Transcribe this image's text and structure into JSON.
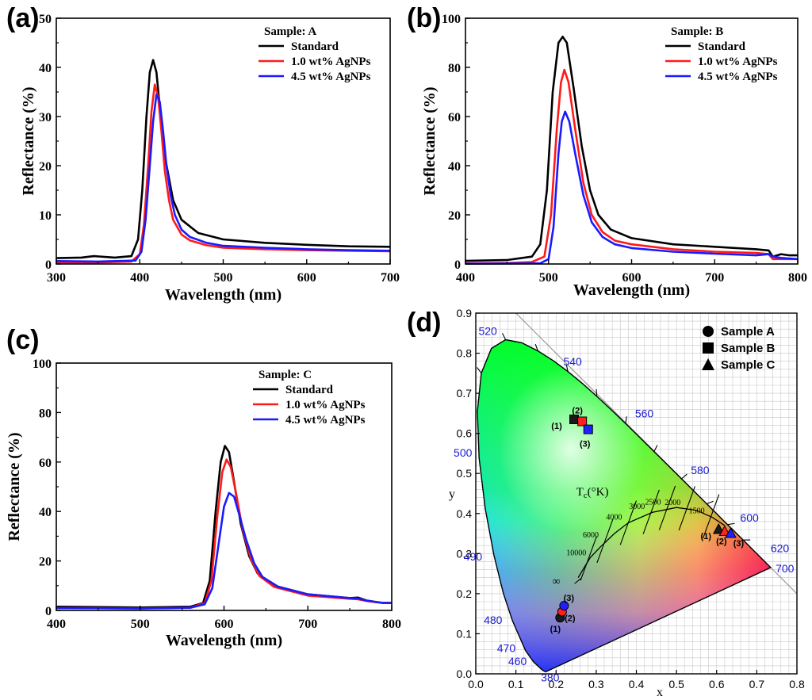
{
  "charts": [
    {
      "panel_label": "(a)",
      "chart_data": {
        "type": "line",
        "title": "",
        "xlabel": "Wavelength (nm)",
        "ylabel": "Reflectance (%)",
        "xlim": [
          300,
          700
        ],
        "ylim": [
          0,
          50
        ],
        "xticks": [
          300,
          400,
          500,
          600,
          700
        ],
        "yticks": [
          0,
          10,
          20,
          30,
          40,
          50
        ],
        "legend_title": "Sample: A",
        "series": [
          {
            "name": "Standard",
            "color": "#000000",
            "x": [
              300,
              330,
              345,
              370,
              390,
              398,
              403,
              408,
              412,
              416,
              420,
              425,
              430,
              440,
              450,
              470,
              500,
              550,
              600,
              650,
              700
            ],
            "y": [
              1.2,
              1.3,
              1.6,
              1.3,
              1.6,
              5,
              15,
              30,
              39,
              41.5,
              39,
              30,
              22,
              13,
              9,
              6.3,
              5,
              4.3,
              3.9,
              3.6,
              3.5
            ]
          },
          {
            "name": "1.0 wt% AgNPs",
            "color": "#ff1a1a",
            "x": [
              300,
              350,
              390,
              400,
              405,
              410,
              414,
              418,
              422,
              426,
              430,
              435,
              440,
              450,
              460,
              480,
              500,
              550,
              600,
              650,
              700
            ],
            "y": [
              0.3,
              0.3,
              0.5,
              2,
              8,
              20,
              31,
              36.5,
              34,
              27,
              19,
              13,
              9,
              6,
              4.8,
              3.8,
              3.3,
              3,
              2.8,
              2.7,
              2.6
            ]
          },
          {
            "name": "4.5 wt% AgNPs",
            "color": "#1a1aff",
            "x": [
              300,
              350,
              395,
              402,
              407,
              412,
              416,
              420,
              424,
              428,
              432,
              437,
              442,
              450,
              460,
              480,
              500,
              550,
              600,
              650,
              700
            ],
            "y": [
              0.6,
              0.5,
              0.7,
              2.5,
              9,
              20,
              29,
              34.5,
              33,
              27,
              20,
              14,
              10,
              7,
              5.5,
              4.3,
              3.7,
              3.3,
              3,
              2.8,
              2.7
            ]
          }
        ]
      }
    },
    {
      "panel_label": "(b)",
      "chart_data": {
        "type": "line",
        "title": "",
        "xlabel": "Wavelength (nm)",
        "ylabel": "Reflectance (%)",
        "xlim": [
          400,
          800
        ],
        "ylim": [
          0,
          100
        ],
        "xticks": [
          400,
          500,
          600,
          700,
          800
        ],
        "yticks": [
          0,
          20,
          40,
          60,
          80,
          100
        ],
        "legend_title": "Sample: B",
        "series": [
          {
            "name": "Standard",
            "color": "#000000",
            "x": [
              400,
              450,
              480,
              490,
              498,
              505,
              512,
              517,
              522,
              530,
              540,
              550,
              560,
              575,
              600,
              650,
              700,
              750,
              765,
              770,
              780,
              790,
              800
            ],
            "y": [
              1.3,
              1.6,
              3,
              8,
              30,
              70,
              90,
              92.5,
              90,
              72,
              48,
              30,
              20,
              14,
              10.5,
              8,
              7,
              6,
              5.5,
              3,
              4,
              3.5,
              3.5
            ]
          },
          {
            "name": "1.0 wt% AgNPs",
            "color": "#ff1a1a",
            "x": [
              400,
              450,
              480,
              495,
              503,
              510,
              515,
              519,
              524,
              532,
              542,
              552,
              565,
              580,
              600,
              650,
              700,
              750,
              765,
              770,
              780,
              800
            ],
            "y": [
              0.3,
              0.4,
              0.8,
              3,
              20,
              55,
              74,
              79,
              74,
              55,
              33,
              20,
              13,
              9.5,
              8,
              6,
              5,
              4.5,
              4,
              2,
              2,
              2
            ]
          },
          {
            "name": "4.5 wt% AgNPs",
            "color": "#1a1aff",
            "x": [
              400,
              450,
              490,
              500,
              506,
              512,
              516,
              520,
              525,
              532,
              542,
              552,
              565,
              580,
              600,
              650,
              700,
              750,
              765,
              770,
              780,
              800
            ],
            "y": [
              0.1,
              0.2,
              0.3,
              2,
              15,
              45,
              58,
              62,
              58,
              45,
              28,
              17,
              11,
              8,
              6.5,
              5,
              4.2,
              3.5,
              4,
              3,
              2.5,
              2
            ]
          }
        ]
      }
    },
    {
      "panel_label": "(c)",
      "chart_data": {
        "type": "line",
        "title": "",
        "xlabel": "Wavelength (nm)",
        "ylabel": "Reflectance (%)",
        "xlim": [
          400,
          800
        ],
        "ylim": [
          0,
          100
        ],
        "xticks": [
          400,
          500,
          600,
          700,
          800
        ],
        "yticks": [
          0,
          20,
          40,
          60,
          80,
          100
        ],
        "legend_title": "Sample: C",
        "series": [
          {
            "name": "Standard",
            "color": "#000000",
            "x": [
              400,
              500,
              560,
              575,
              583,
              590,
              596,
              601,
              606,
              612,
              620,
              630,
              640,
              660,
              700,
              750,
              760,
              770,
              780,
              790,
              800
            ],
            "y": [
              1.5,
              1.2,
              1.5,
              3,
              12,
              40,
              60,
              66.5,
              64,
              52,
              35,
              22,
              15,
              10,
              6.5,
              5,
              5.2,
              4,
              3.5,
              3,
              3
            ]
          },
          {
            "name": "1.0 wt% AgNPs",
            "color": "#ff1a1a",
            "x": [
              400,
              500,
              560,
              577,
              585,
              592,
              598,
              603,
              608,
              614,
              622,
              632,
              642,
              660,
              700,
              750,
              760,
              770,
              780,
              790,
              800
            ],
            "y": [
              1,
              0.8,
              1.1,
              3,
              12,
              38,
              56,
              61,
              58,
              48,
              33,
              21,
              14,
              9.5,
              6,
              4.7,
              4.5,
              3.8,
              3.4,
              3,
              3
            ]
          },
          {
            "name": "4.5 wt% AgNPs",
            "color": "#1a1aff",
            "x": [
              400,
              500,
              560,
              577,
              586,
              594,
              600,
              606,
              612,
              618,
              626,
              636,
              646,
              665,
              700,
              750,
              760,
              770,
              780,
              790,
              800
            ],
            "y": [
              1,
              0.8,
              1.1,
              2.5,
              9,
              28,
              42,
              47.5,
              46,
              39,
              29,
              19,
              13.5,
              9.5,
              6.5,
              5,
              4.8,
              4,
              3.5,
              3,
              3
            ]
          }
        ]
      }
    }
  ],
  "cie": {
    "panel_label": "(d)",
    "chart_data": {
      "type": "scatter",
      "title": "",
      "xlabel": "x",
      "ylabel": "y",
      "xlim": [
        0.0,
        0.8
      ],
      "ylim": [
        0.0,
        0.9
      ],
      "xticks": [
        "0.0",
        "0.1",
        "0.2",
        "0.3",
        "0.4",
        "0.5",
        "0.6",
        "0.7",
        "0.8"
      ],
      "yticks": [
        "0.0",
        "0.1",
        "0.2",
        "0.3",
        "0.4",
        "0.5",
        "0.6",
        "0.7",
        "0.8",
        "0.9"
      ],
      "legend": [
        {
          "name": "Sample A",
          "marker": "circle"
        },
        {
          "name": "Sample B",
          "marker": "square"
        },
        {
          "name": "Sample C",
          "marker": "triangle"
        }
      ],
      "wavelength_labels": [
        {
          "text": "380",
          "x": 0.174,
          "y": 0.005
        },
        {
          "text": "460",
          "x": 0.144,
          "y": 0.03
        },
        {
          "text": "470",
          "x": 0.124,
          "y": 0.058
        },
        {
          "text": "480",
          "x": 0.091,
          "y": 0.133
        },
        {
          "text": "490",
          "x": 0.045,
          "y": 0.295
        },
        {
          "text": "500",
          "x": 0.008,
          "y": 0.538
        },
        {
          "text": "520",
          "x": 0.074,
          "y": 0.834
        },
        {
          "text": "540",
          "x": 0.23,
          "y": 0.754
        },
        {
          "text": "560",
          "x": 0.373,
          "y": 0.624
        },
        {
          "text": "580",
          "x": 0.512,
          "y": 0.487
        },
        {
          "text": "600",
          "x": 0.627,
          "y": 0.372
        },
        {
          "text": "620",
          "x": 0.691,
          "y": 0.308
        },
        {
          "text": "700",
          "x": 0.735,
          "y": 0.265
        }
      ],
      "tc_label": "T",
      "tc_sub": "c",
      "tc_unit": "(°K)",
      "cct_labels": [
        {
          "text": "10000",
          "x": 0.281,
          "y": 0.288
        },
        {
          "text": "6000",
          "x": 0.322,
          "y": 0.332
        },
        {
          "text": "4000",
          "x": 0.38,
          "y": 0.377
        },
        {
          "text": "3000",
          "x": 0.437,
          "y": 0.404
        },
        {
          "text": "2500",
          "x": 0.477,
          "y": 0.414
        },
        {
          "text": "2000",
          "x": 0.526,
          "y": 0.413
        },
        {
          "text": "1500",
          "x": 0.586,
          "y": 0.393
        },
        {
          "text": "∞",
          "x": 0.24,
          "y": 0.234
        }
      ],
      "points": [
        {
          "sample": "Sample A",
          "label": "(1)",
          "color": "#1a1a1a",
          "x": 0.21,
          "y": 0.14
        },
        {
          "sample": "Sample A",
          "label": "(2)",
          "color": "#ff2020",
          "x": 0.215,
          "y": 0.155
        },
        {
          "sample": "Sample A",
          "label": "(3)",
          "color": "#2020ff",
          "x": 0.22,
          "y": 0.17
        },
        {
          "sample": "Sample B",
          "label": "(1)",
          "color": "#1a1a1a",
          "x": 0.245,
          "y": 0.635
        },
        {
          "sample": "Sample B",
          "label": "(2)",
          "color": "#ff2020",
          "x": 0.265,
          "y": 0.63
        },
        {
          "sample": "Sample B",
          "label": "(3)",
          "color": "#2020ff",
          "x": 0.28,
          "y": 0.61
        },
        {
          "sample": "Sample C",
          "label": "(1)",
          "color": "#1a1a1a",
          "x": 0.605,
          "y": 0.36
        },
        {
          "sample": "Sample C",
          "label": "(2)",
          "color": "#ff2020",
          "x": 0.62,
          "y": 0.355
        },
        {
          "sample": "Sample C",
          "label": "(3)",
          "color": "#2020ff",
          "x": 0.635,
          "y": 0.35
        }
      ]
    }
  }
}
